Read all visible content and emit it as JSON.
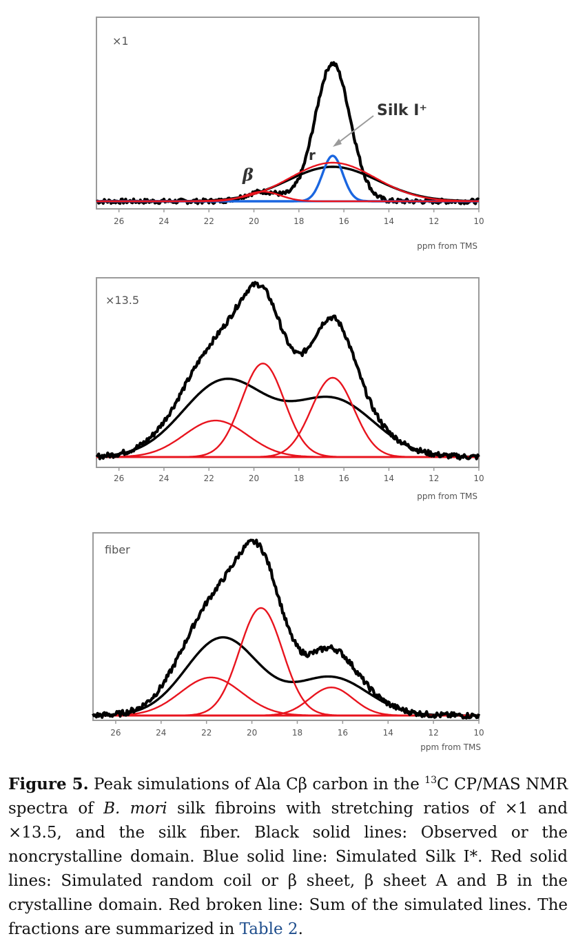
{
  "figure": {
    "panels": [
      {
        "label": "×1",
        "xlabel": "ppm from TMS",
        "ticks": [
          "26",
          "24",
          "22",
          "20",
          "18",
          "16",
          "14",
          "12",
          "10"
        ],
        "annotations": [
          {
            "text": "β"
          },
          {
            "text": "r"
          },
          {
            "text": "Silk Ⅰ⁺"
          }
        ]
      },
      {
        "label": "×13.5",
        "xlabel": "ppm from TMS",
        "ticks": [
          "26",
          "24",
          "22",
          "20",
          "18",
          "16",
          "14",
          "12",
          "10"
        ],
        "annotations": []
      },
      {
        "label": "fiber",
        "xlabel": "ppm from TMS",
        "ticks": [
          "26",
          "24",
          "22",
          "20",
          "18",
          "16",
          "14",
          "12",
          "10"
        ],
        "annotations": []
      }
    ]
  },
  "chart_data": [
    {
      "type": "line",
      "title": "×1",
      "xlabel": "ppm from TMS",
      "xlim": [
        27,
        10
      ],
      "x_reversed": true,
      "series": [
        {
          "peaks": [
            [
              16.5,
              1.0,
              0.78
            ],
            [
              19.6,
              0.07,
              0.78
            ]
          ],
          "style": "black-thick",
          "role": "observed"
        },
        {
          "peaks": [
            [
              16.5,
              0.25,
              2.0
            ]
          ],
          "style": "black",
          "role": "noncrystalline"
        },
        {
          "peaks": [
            [
              16.5,
              0.33,
              0.45
            ]
          ],
          "style": "blue",
          "role": "Silk I*"
        },
        {
          "peaks": [
            [
              16.5,
              0.28,
              1.9
            ]
          ],
          "style": "red",
          "role": "random coil"
        },
        {
          "peaks": [
            [
              19.6,
              0.07,
              0.78
            ]
          ],
          "style": "red",
          "role": "beta sheet"
        }
      ]
    },
    {
      "type": "line",
      "title": "×13.5",
      "xlabel": "ppm from TMS",
      "xlim": [
        27,
        10
      ],
      "x_reversed": true,
      "series": [
        {
          "peaks": [
            [
              21.3,
              0.48,
              1.85
            ],
            [
              16.5,
              0.36,
              1.85
            ]
          ],
          "style": "black",
          "role": "noncrystalline"
        },
        {
          "peaks": [
            [
              21.7,
              0.23,
              1.4
            ]
          ],
          "style": "red",
          "role": "beta sheet A"
        },
        {
          "peaks": [
            [
              19.6,
              0.59,
              0.95
            ]
          ],
          "style": "red",
          "role": "beta sheet B"
        },
        {
          "peaks": [
            [
              16.5,
              0.5,
              0.95
            ]
          ],
          "style": "red",
          "role": "random coil"
        },
        {
          "peaks": [
            [
              21.3,
              0.48,
              1.85
            ],
            [
              16.5,
              0.36,
              1.85
            ],
            [
              21.7,
              0.23,
              1.4
            ],
            [
              19.6,
              0.59,
              0.95
            ],
            [
              16.5,
              0.5,
              0.95
            ]
          ],
          "style": "black-thick",
          "role": "observed"
        }
      ]
    },
    {
      "type": "line",
      "title": "fiber",
      "xlabel": "ppm from TMS",
      "xlim": [
        27,
        10
      ],
      "x_reversed": true,
      "series": [
        {
          "peaks": [
            [
              21.3,
              0.47,
              1.6
            ],
            [
              16.5,
              0.23,
              1.6
            ]
          ],
          "style": "black",
          "role": "noncrystalline"
        },
        {
          "peaks": [
            [
              21.8,
              0.23,
              1.35
            ]
          ],
          "style": "red",
          "role": "beta sheet A"
        },
        {
          "peaks": [
            [
              19.6,
              0.65,
              0.95
            ]
          ],
          "style": "red",
          "role": "beta sheet B"
        },
        {
          "peaks": [
            [
              16.5,
              0.17,
              0.95
            ]
          ],
          "style": "red",
          "role": "random coil"
        },
        {
          "peaks": [
            [
              21.3,
              0.47,
              1.6
            ],
            [
              16.5,
              0.23,
              1.6
            ],
            [
              21.8,
              0.23,
              1.35
            ],
            [
              19.6,
              0.65,
              0.95
            ],
            [
              16.5,
              0.17,
              0.95
            ]
          ],
          "style": "black-thick",
          "role": "observed"
        }
      ]
    }
  ],
  "caption": {
    "fig_label": "Figure 5.",
    "p1": " Peak simulations of Ala Cβ carbon in the ",
    "sup": "13",
    "p2": "C CP/MAS NMR spectra of ",
    "italic": "B. mori",
    "p3": " silk fibroins with stretching ratios of ×1 and ×13.5, and the silk fiber. Black solid lines: Observed or the noncrystalline domain. Blue solid line: Simulated Silk I*. Red solid lines: Simulated random coil or β sheet, β sheet A and B in the crystalline domain. Red broken line: Sum of the simulated lines. The fractions are summarized in ",
    "link": "Table 2",
    "p4": "."
  }
}
